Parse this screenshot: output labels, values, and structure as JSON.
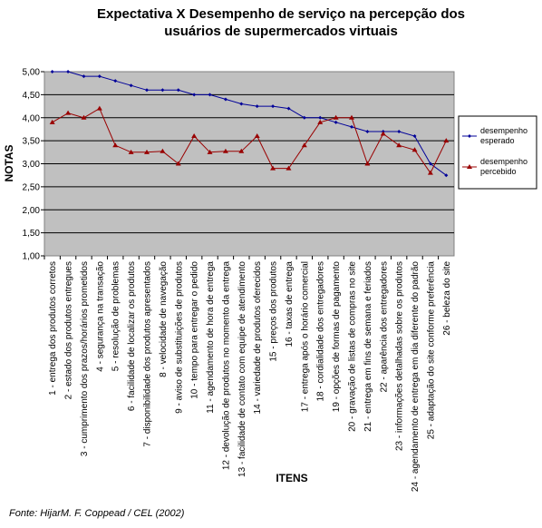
{
  "chart_data": {
    "type": "line",
    "title_lines": [
      "Expectativa X Desempenho de serviço na percepção dos",
      "usuários de supermercados virtuais"
    ],
    "ylabel": "NOTAS",
    "xlabel": "ITENS",
    "ylim": [
      1,
      5
    ],
    "yticks": [
      "1,00",
      "1,50",
      "2,00",
      "2,50",
      "3,00",
      "3,50",
      "4,00",
      "4,50",
      "5,00"
    ],
    "grid": true,
    "legend_position": "right",
    "categories": [
      "1 - entrega dos produtos corretos",
      "2 - estado dos produtos entregues",
      "3 - cumprimento dos prazos/horários prometidos",
      "4 - segurança na transação",
      "5 - resolução de problemas",
      "6 - facilidade de localizar os produtos",
      "7 - disponibilidade dos produtos apresentados",
      "8 - velocidade de navegação",
      "9 - aviso de substituições de produtos",
      "10 - tempo para entregar o pedido",
      "11 - agendamento de hora de entrega",
      "12 - devolução de produtos no momento da entrega",
      "13 - facilidade de contato com equipe de atendimento",
      "14 - variedade de produtos oferecidos",
      "15 - preços dos produtos",
      "16 - taxas de entrega",
      "17 - entrega após o horário comercial",
      "18 - cordialidade dos entregadores",
      "19 - opções de formas de pagamento",
      "20 - gravação de listas de compras no site",
      "21 - entrega em fins de semana e feriados",
      "22 - aparência dos entregadores",
      "23 - informações detalhadas sobre os produtos",
      "24 - agendamento de entrega em dia diferente do padrão",
      "25 - adaptação do site conforme preferência",
      "26 - beleza do site"
    ],
    "series": [
      {
        "name_lines": [
          "desempenho",
          "esperado"
        ],
        "color": "#000099",
        "marker": "diamond",
        "values": [
          5.0,
          5.0,
          4.9,
          4.9,
          4.8,
          4.7,
          4.6,
          4.6,
          4.6,
          4.5,
          4.5,
          4.4,
          4.3,
          4.25,
          4.25,
          4.2,
          4.0,
          4.0,
          3.9,
          3.8,
          3.7,
          3.7,
          3.7,
          3.6,
          3.0,
          2.75
        ]
      },
      {
        "name_lines": [
          "desempenho",
          "percebido"
        ],
        "color": "#990000",
        "marker": "triangle",
        "values": [
          3.9,
          4.1,
          4.0,
          4.2,
          3.4,
          3.25,
          3.25,
          3.27,
          3.0,
          3.6,
          3.25,
          3.27,
          3.27,
          3.6,
          2.9,
          2.9,
          3.4,
          3.9,
          4.0,
          4.0,
          3.0,
          3.65,
          3.4,
          3.3,
          2.8,
          3.5
        ]
      }
    ]
  },
  "source": "Fonte: HijarM. F. Coppead / CEL (2002)"
}
